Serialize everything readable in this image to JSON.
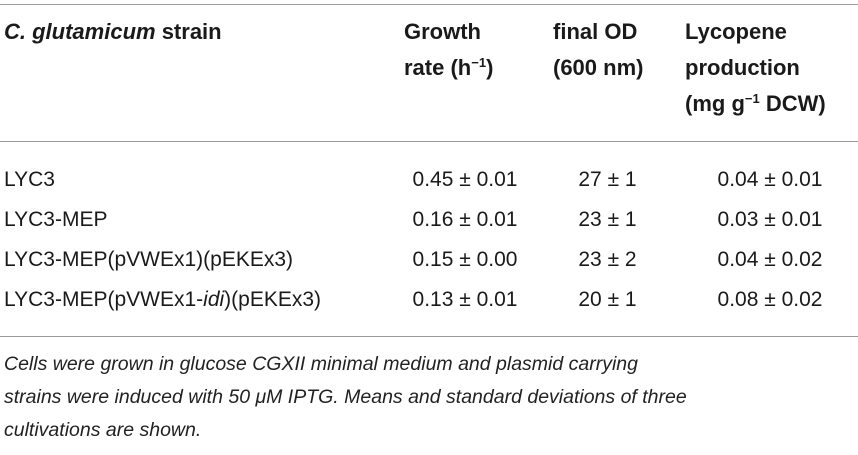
{
  "table": {
    "headers": {
      "strain": {
        "italic_part": "C. glutamicum",
        "rest": " strain"
      },
      "growth": {
        "line1": "Growth",
        "line2_pre": "rate (h",
        "line2_sup": "−1",
        "line2_post": ")"
      },
      "od": {
        "line1": "final OD",
        "line2": "(600 nm)"
      },
      "lycopene": {
        "line1": "Lycopene",
        "line2": "production",
        "line3_pre": "(mg g",
        "line3_sup": "−1",
        "line3_post": " DCW)"
      }
    },
    "rows": [
      {
        "strain_pre": "LYC3",
        "strain_italic": "",
        "strain_post": "",
        "growth": "0.45 ± 0.01",
        "od": "27 ± 1",
        "lycopene": "0.04 ± 0.01"
      },
      {
        "strain_pre": "LYC3-MEP",
        "strain_italic": "",
        "strain_post": "",
        "growth": "0.16 ± 0.01",
        "od": "23 ± 1",
        "lycopene": "0.03 ± 0.01"
      },
      {
        "strain_pre": "LYC3-MEP(pVWEx1)(pEKEx3)",
        "strain_italic": "",
        "strain_post": "",
        "growth": "0.15 ± 0.00",
        "od": "23 ± 2",
        "lycopene": "0.04 ± 0.02"
      },
      {
        "strain_pre": "LYC3-MEP(pVWEx1-",
        "strain_italic": "idi",
        "strain_post": ")(pEKEx3)",
        "growth": "0.13 ± 0.01",
        "od": "20 ± 1",
        "lycopene": "0.08 ± 0.02"
      }
    ]
  },
  "caption": {
    "line1": "Cells were grown in glucose CGXII minimal medium and plasmid carrying",
    "line2": "strains were induced with 50 μM IPTG. Means and standard deviations of three",
    "line3": "cultivations are shown."
  }
}
